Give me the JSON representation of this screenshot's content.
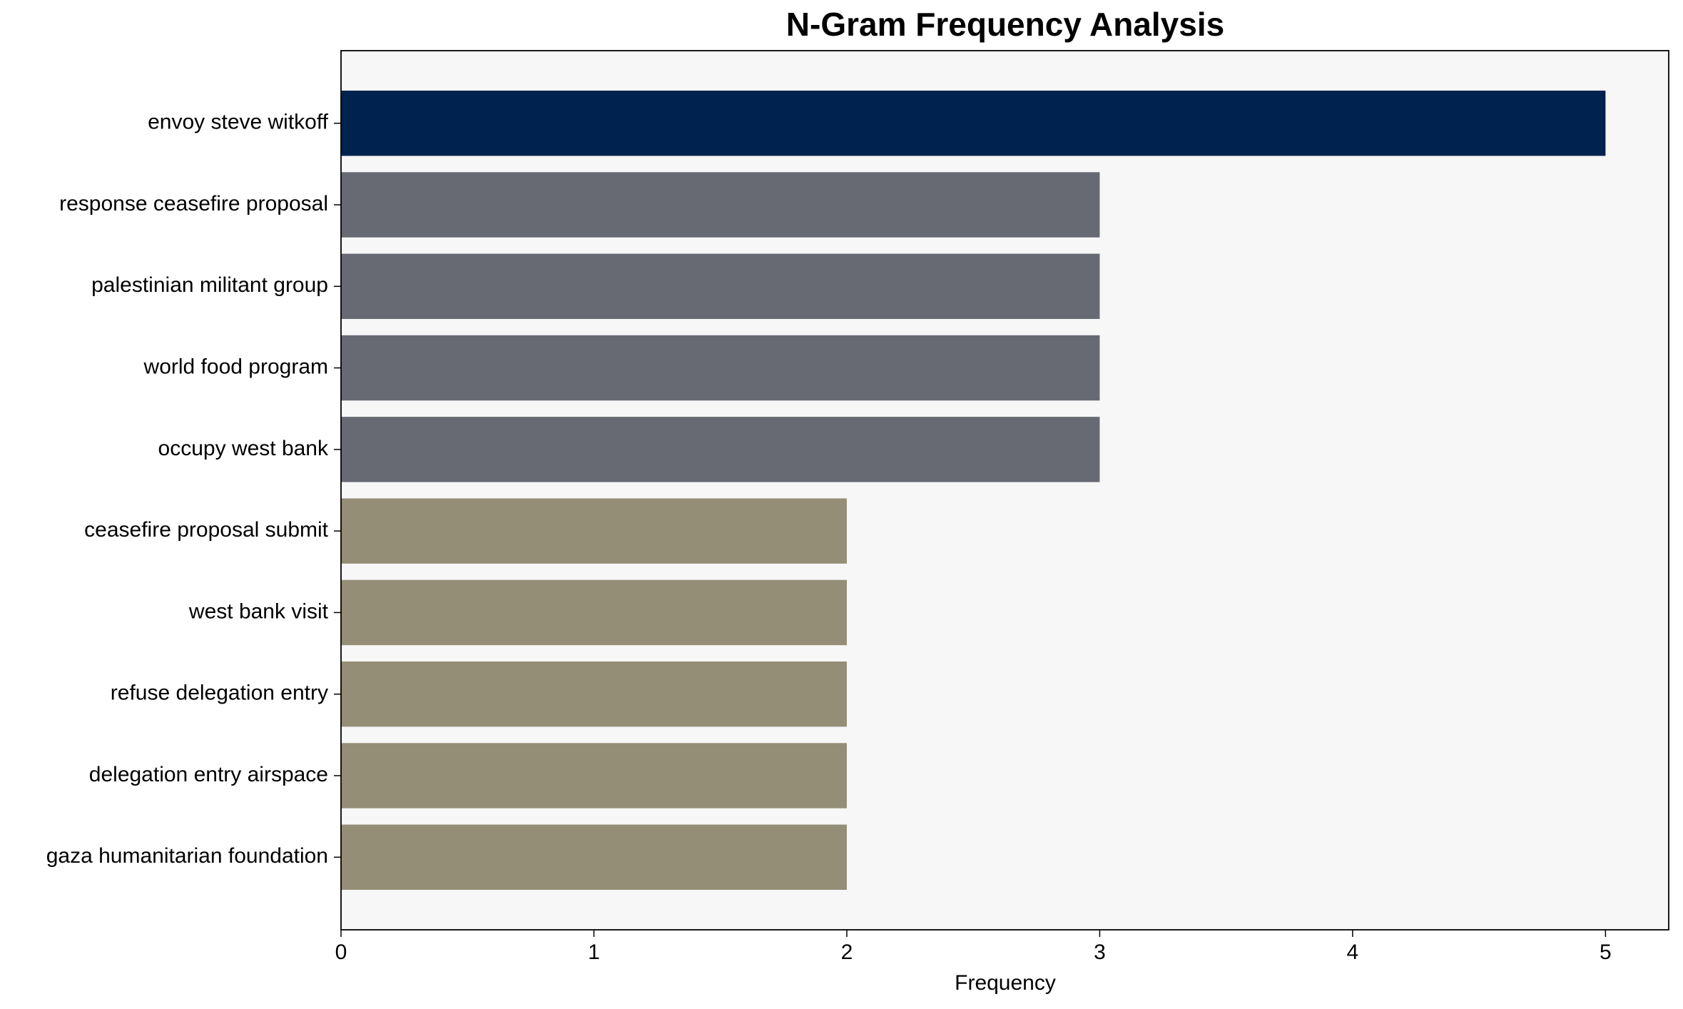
{
  "chart_data": {
    "type": "barh",
    "title": "N-Gram Frequency Analysis",
    "xlabel": "Frequency",
    "categories": [
      "envoy steve witkoff",
      "response ceasefire proposal",
      "palestinian militant group",
      "world food program",
      "occupy west bank",
      "ceasefire proposal submit",
      "west bank visit",
      "refuse delegation entry",
      "delegation entry airspace",
      "gaza humanitarian foundation"
    ],
    "values": [
      5,
      3,
      3,
      3,
      3,
      2,
      2,
      2,
      2,
      2
    ],
    "colors": [
      "#00224e",
      "#676a73",
      "#676a73",
      "#676a73",
      "#676a73",
      "#948e77",
      "#948e77",
      "#948e77",
      "#948e77",
      "#948e77"
    ],
    "xlim": [
      0,
      5.25
    ],
    "xticks": [
      0,
      1,
      2,
      3,
      4,
      5
    ],
    "background": "#f7f7f7"
  }
}
